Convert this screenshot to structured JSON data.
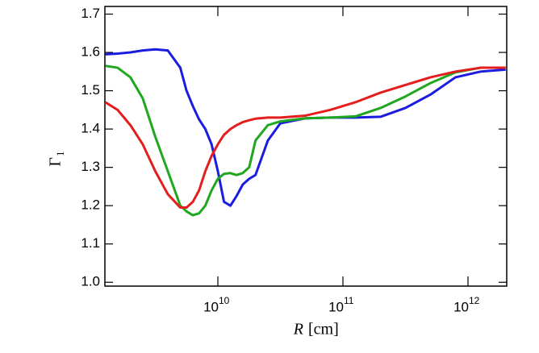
{
  "chart_data": {
    "type": "line",
    "xscale": "log",
    "xlabel": {
      "var": "R",
      "unit": "[cm]"
    },
    "ylabel": {
      "text": "Γ",
      "sub": "1"
    },
    "xlim": [
      1250000000,
      2040000000000
    ],
    "ylim": [
      0.99,
      1.72
    ],
    "xticks": [
      {
        "value": 10000000000,
        "label": "10",
        "exponent": "10"
      },
      {
        "value": 100000000000,
        "label": "10",
        "exponent": "11"
      },
      {
        "value": 1000000000000,
        "label": "10",
        "exponent": "12"
      }
    ],
    "yticks": [
      {
        "value": 1,
        "label": "1.0"
      },
      1.1,
      1.2,
      1.3,
      1.4,
      1.5,
      1.6,
      1.7
    ],
    "x": [
      1260000000,
      1580000000,
      2000000000,
      2510000000,
      3160000000,
      3980000000,
      5010000000,
      5620000000,
      6310000000,
      7080000000,
      7940000000,
      8910000000,
      10000000000,
      11200000000,
      12600000000,
      14100000000,
      15800000000,
      17800000000,
      20000000000,
      25100000000,
      31600000000,
      50100000000,
      79400000000,
      126000000000,
      200000000000,
      316000000000,
      501000000000,
      794000000000,
      1260000000000,
      2000000000000
    ],
    "series": [
      {
        "color": "#1c1ce0",
        "values": [
          1.595,
          1.597,
          1.6,
          1.605,
          1.608,
          1.605,
          1.56,
          1.5,
          1.46,
          1.425,
          1.4,
          1.36,
          1.29,
          1.21,
          1.2,
          1.225,
          1.255,
          1.27,
          1.28,
          1.37,
          1.415,
          1.428,
          1.43,
          1.43,
          1.432,
          1.455,
          1.49,
          1.535,
          1.55,
          1.555
        ]
      },
      {
        "color": "#1fa81f",
        "values": [
          1.565,
          1.56,
          1.535,
          1.48,
          1.38,
          1.29,
          1.2,
          1.185,
          1.175,
          1.18,
          1.2,
          1.24,
          1.27,
          1.283,
          1.285,
          1.28,
          1.285,
          1.3,
          1.37,
          1.41,
          1.42,
          1.428,
          1.43,
          1.433,
          1.455,
          1.485,
          1.52,
          1.548,
          1.56,
          1.56
        ]
      },
      {
        "color": "#e41e1e",
        "values": [
          1.47,
          1.45,
          1.41,
          1.36,
          1.29,
          1.23,
          1.195,
          1.195,
          1.21,
          1.24,
          1.29,
          1.33,
          1.36,
          1.385,
          1.4,
          1.41,
          1.418,
          1.423,
          1.427,
          1.43,
          1.43,
          1.435,
          1.45,
          1.47,
          1.495,
          1.515,
          1.535,
          1.55,
          1.56,
          1.56
        ]
      }
    ]
  }
}
